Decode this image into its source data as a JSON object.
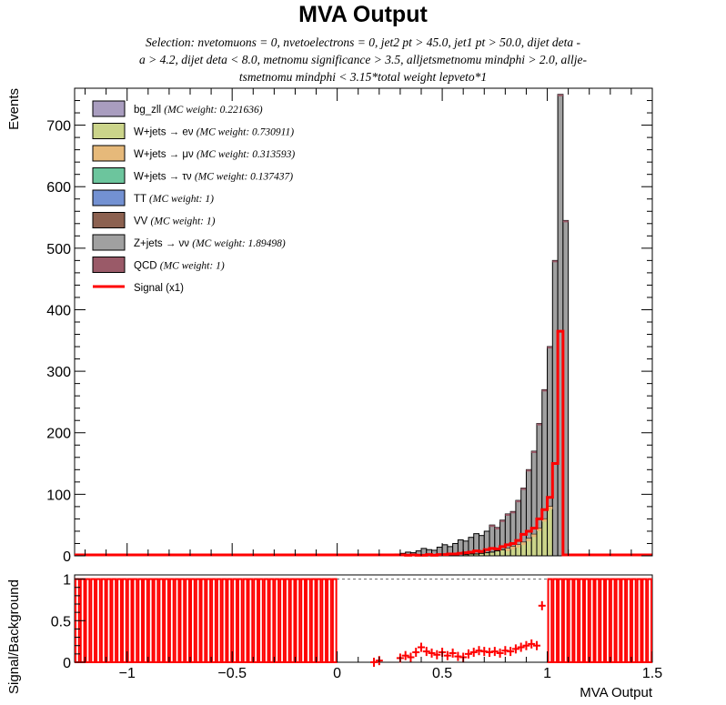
{
  "chart_data": [
    {
      "type": "histogram",
      "stacked": true,
      "title": "MVA Output",
      "selection": [
        "Selection: nvetomuons = 0, nvetoelectrons = 0, jet2 pt > 45.0, jet1 pt > 50.0, dijet deta -",
        "a > 4.2, dijet deta < 8.0, metnomu significance > 3.5, alljetsmetnomu mindphi > 2.0, allje-",
        "tsmetnomu mindphi < 3.15*total weight lepveto*1"
      ],
      "ylabel": "Events",
      "xlim": [
        -1.25,
        1.5
      ],
      "ylim": [
        0,
        760
      ],
      "yticks": [
        0,
        100,
        200,
        300,
        400,
        500,
        600,
        700
      ],
      "bin_edges_start": -1.25,
      "bin_width": 0.025,
      "legend_position": "top-left",
      "legend": [
        {
          "label": "bg_zll",
          "weight": "(MC weight: 0.221636)",
          "color": "#a99dbf"
        },
        {
          "label": "W+jets → eν",
          "weight": "(MC weight: 0.730911)",
          "color": "#cbd48a"
        },
        {
          "label": "W+jets → μν",
          "weight": "(MC weight: 0.313593)",
          "color": "#e6b97a"
        },
        {
          "label": "W+jets → τν",
          "weight": "(MC weight: 0.137437)",
          "color": "#6cc59d"
        },
        {
          "label": "TT",
          "weight": "(MC weight: 1)",
          "color": "#7391d2"
        },
        {
          "label": "VV",
          "weight": "(MC weight: 1)",
          "color": "#8c6150"
        },
        {
          "label": "Z+jets → νν",
          "weight": "(MC weight: 1.89498)",
          "color": "#a0a0a0"
        },
        {
          "label": "QCD",
          "weight": "(MC weight: 1)",
          "color": "#9a5a68"
        },
        {
          "label": "Signal (x1)",
          "weight": "",
          "color": "#ff0000"
        }
      ],
      "series": [
        {
          "name": "W+jets → eν",
          "color": "#cbd48a",
          "x_start": 0.6,
          "values": [
            2,
            3,
            3,
            4,
            5,
            6,
            8,
            10,
            12,
            15,
            18,
            22,
            28,
            35,
            45,
            60,
            80
          ]
        },
        {
          "name": "Z+jets → νν",
          "color": "#a0a0a0",
          "x_start": 0.2,
          "total_values": [
            1,
            1,
            2,
            3,
            4,
            6,
            5,
            8,
            12,
            10,
            9,
            14,
            18,
            15,
            20,
            26,
            24,
            30,
            36,
            33,
            40,
            50,
            46,
            58,
            68,
            72,
            90,
            110,
            140,
            170,
            215,
            270,
            340,
            480,
            750,
            545
          ]
        },
        {
          "name": "Signal (x1)",
          "color": "#ff0000",
          "x_start": 0.2,
          "values": [
            0,
            0,
            0,
            0,
            0,
            1,
            0,
            1,
            1,
            2,
            1,
            2,
            2,
            3,
            3,
            4,
            5,
            6,
            8,
            7,
            10,
            12,
            11,
            15,
            18,
            20,
            25,
            35,
            40,
            45,
            60,
            75,
            95,
            150,
            365,
            0
          ]
        }
      ]
    },
    {
      "type": "scatter",
      "ylabel": "Signal/Background",
      "xlabel": "MVA Output",
      "xlim": [
        -1.25,
        1.5
      ],
      "ylim": [
        0,
        1.05
      ],
      "yticks": [
        0,
        0.5,
        1
      ],
      "xticks": [
        -1,
        -0.5,
        0,
        0.5,
        1,
        1.5
      ],
      "xtick_labels": [
        "−1",
        "−0.5",
        "0",
        "0.5",
        "1",
        "1.5"
      ],
      "reference_line": 1,
      "empty_bin_value": 1,
      "x": [
        0.175,
        0.2,
        0.3,
        0.325,
        0.35,
        0.375,
        0.4,
        0.425,
        0.45,
        0.475,
        0.5,
        0.525,
        0.55,
        0.575,
        0.6,
        0.625,
        0.65,
        0.675,
        0.7,
        0.725,
        0.75,
        0.775,
        0.8,
        0.825,
        0.85,
        0.875,
        0.9,
        0.925,
        0.95,
        0.975
      ],
      "values": [
        0,
        0.02,
        0.05,
        0.08,
        0.06,
        0.12,
        0.18,
        0.13,
        0.11,
        0.09,
        0.12,
        0.08,
        0.11,
        0.07,
        0.06,
        0.1,
        0.12,
        0.14,
        0.13,
        0.12,
        0.13,
        0.11,
        0.14,
        0.13,
        0.16,
        0.18,
        0.2,
        0.22,
        0.2,
        0.68
      ]
    }
  ]
}
